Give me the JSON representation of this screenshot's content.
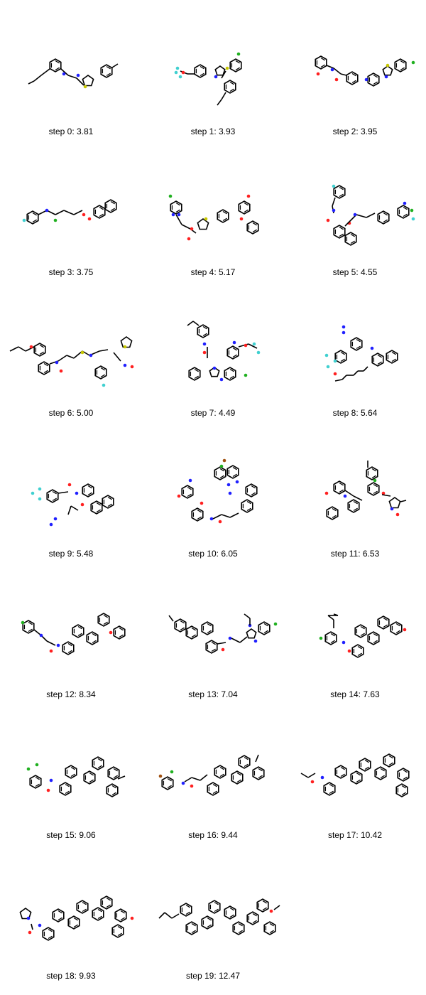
{
  "items": [
    {
      "label": "step 0: 3.81",
      "kind": "chain-amidine-thiazole"
    },
    {
      "label": "step 1: 3.93",
      "kind": "spiro-thiazetidine"
    },
    {
      "label": "step 2: 3.95",
      "kind": "benzothiazole-piperidine"
    },
    {
      "label": "step 3: 3.75",
      "kind": "enamine-naphthoate"
    },
    {
      "label": "step 4: 5.17",
      "kind": "pyridazine-thiophene-biaryl"
    },
    {
      "label": "step 5: 4.55",
      "kind": "naphthamide"
    },
    {
      "label": "step 6: 5.00",
      "kind": "thioether-oxime"
    },
    {
      "label": "step 7: 4.49",
      "kind": "benzimidazole-pyridine"
    },
    {
      "label": "step 8: 5.64",
      "kind": "diazo-naphthalene"
    },
    {
      "label": "step 9: 5.48",
      "kind": "naphthyl-biaryl-amide"
    },
    {
      "label": "step 10: 6.05",
      "kind": "quinoxaline-acrylamide"
    },
    {
      "label": "step 11: 6.53",
      "kind": "stilbene-isoxazole"
    },
    {
      "label": "step 12: 8.34",
      "kind": "terphenyl-glycinamide"
    },
    {
      "label": "step 13: 7.04",
      "kind": "terphenyl-benzimidazole"
    },
    {
      "label": "step 14: 7.63",
      "kind": "terphenyl-benzamide"
    },
    {
      "label": "step 15: 9.06",
      "kind": "quaterphenyl-benzamide"
    },
    {
      "label": "step 16: 9.44",
      "kind": "quaterphenyl-propanamide"
    },
    {
      "label": "step 17: 10.42",
      "kind": "quinquephenyl-isobutyramide"
    },
    {
      "label": "step 18: 9.93",
      "kind": "sexiphenyl-pyrrolidine-urea"
    },
    {
      "label": "step 19: 12.47",
      "kind": "sexiphenyl-ether"
    }
  ],
  "colors": {
    "bond": "#000000",
    "nitrogen": "#2020ff",
    "oxygen": "#ff2020",
    "sulfur": "#c8c800",
    "chlorine": "#20b020",
    "fluorine": "#40d0d0",
    "bromine": "#a05010"
  }
}
